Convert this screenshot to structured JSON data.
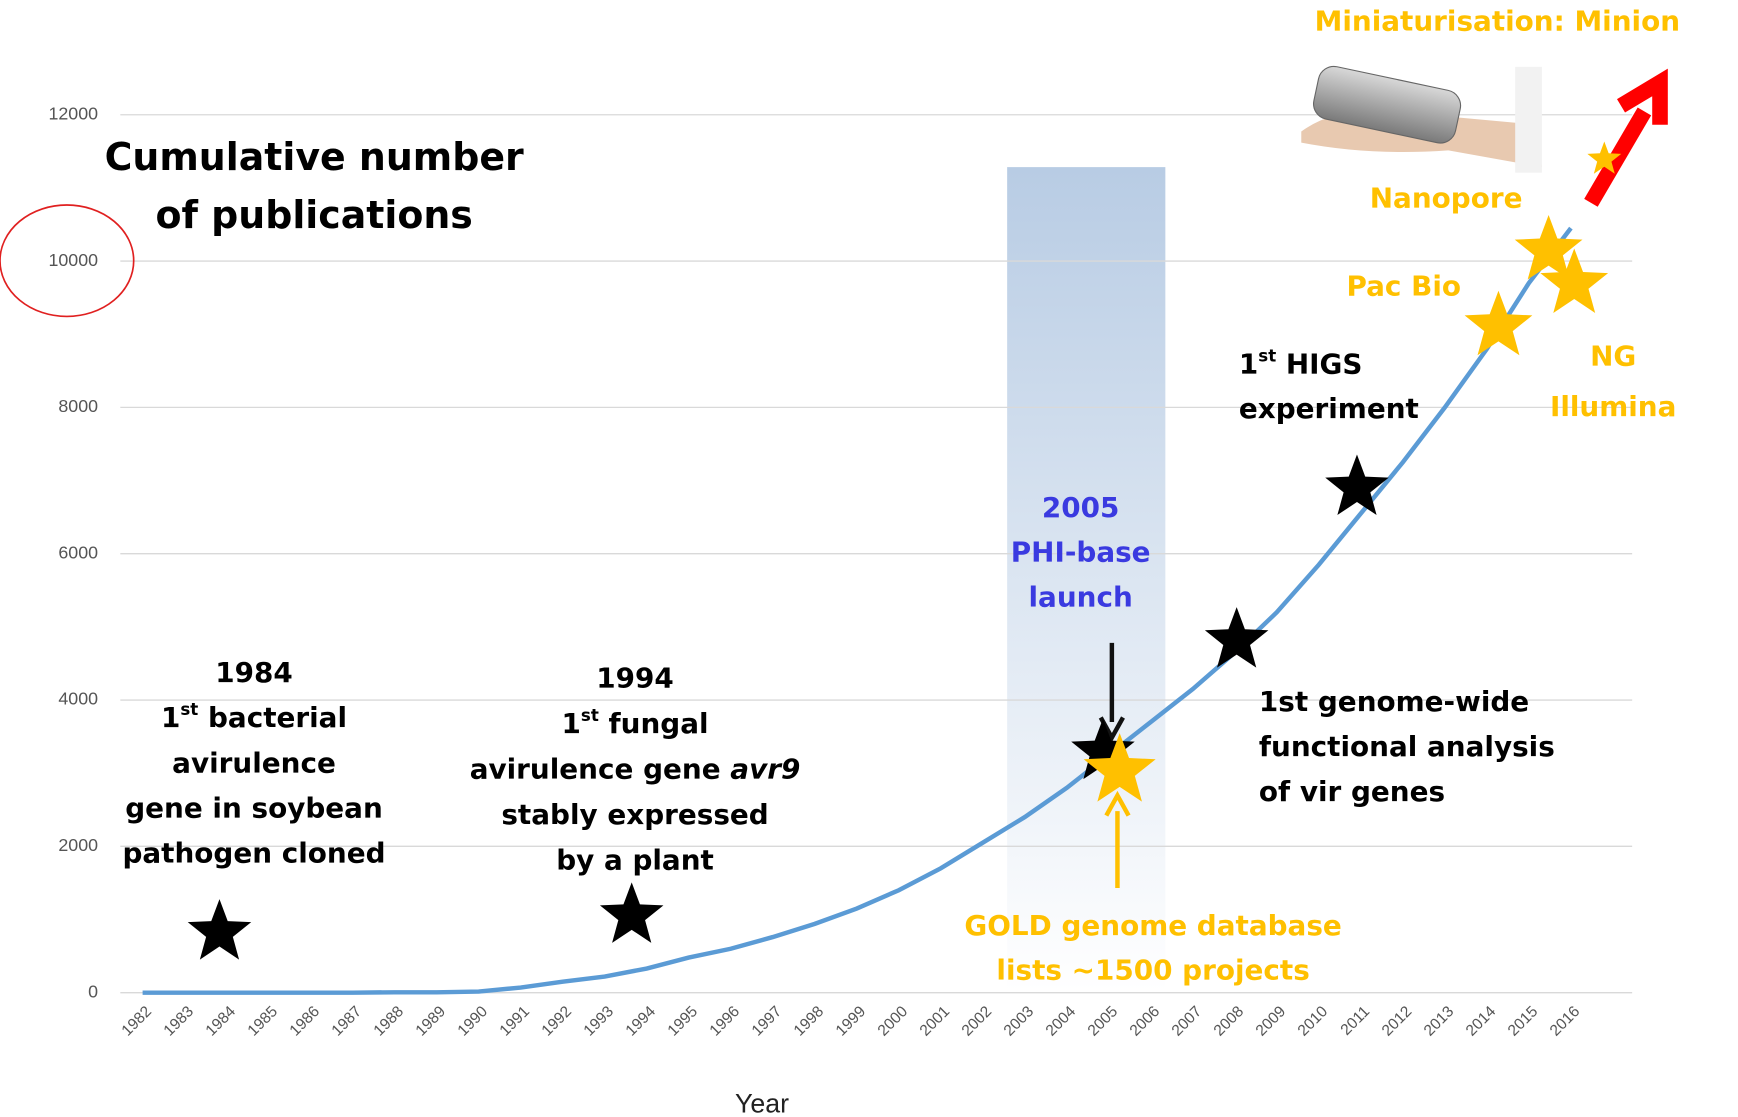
{
  "chart_data": {
    "type": "line",
    "title": [
      "Cumulative number",
      "of publications"
    ],
    "x_label": "Year",
    "categories": [
      "1982",
      "1983",
      "1984",
      "1985",
      "1986",
      "1987",
      "1988",
      "1989",
      "1990",
      "1991",
      "1992",
      "1993",
      "1994",
      "1995",
      "1996",
      "1997",
      "1998",
      "1999",
      "2000",
      "2001",
      "2002",
      "2003",
      "2004",
      "2005",
      "2006",
      "2007",
      "2008",
      "2009",
      "2010",
      "2011",
      "2012",
      "2013",
      "2014",
      "2015",
      "2016"
    ],
    "values": [
      0,
      0,
      0,
      0,
      0,
      0,
      5,
      5,
      15,
      70,
      150,
      220,
      330,
      480,
      600,
      760,
      940,
      1150,
      1400,
      1700,
      2050,
      2400,
      2800,
      3250,
      3700,
      4150,
      4650,
      5200,
      5850,
      6550,
      7250,
      8000,
      8800,
      9700,
      10450
    ],
    "color": "#5b9bd5",
    "ylim": [
      0,
      12000
    ],
    "yticks": [
      0,
      2000,
      4000,
      6000,
      8000,
      10000,
      12000
    ],
    "grid": true,
    "annotations": [
      {
        "color": "#000000",
        "lines": [
          "1984",
          [
            {
              "text": "1"
            },
            {
              "text": "st",
              "sup": true
            },
            {
              "text": " bacterial"
            }
          ],
          "avirulence",
          "gene in soybean",
          "pathogen cloned"
        ]
      },
      {
        "color": "#000000",
        "lines": [
          "1994",
          [
            {
              "text": "1"
            },
            {
              "text": "st",
              "sup": true
            },
            {
              "text": " fungal"
            }
          ],
          [
            {
              "text": "avirulence gene "
            },
            {
              "text": "avr9",
              "italic": true
            }
          ],
          "stably expressed",
          "by a plant"
        ]
      },
      {
        "color": "#3a3ae0",
        "lines": [
          "2005",
          "PHI-base",
          "launch"
        ]
      },
      {
        "color": "#ffc000",
        "lines": [
          "GOLD genome database",
          "lists ~1500 projects"
        ]
      },
      {
        "color": "#000000",
        "lines": [
          "1st genome-wide",
          "functional analysis",
          "of vir genes"
        ]
      },
      {
        "color": "#000000",
        "lines": [
          [
            {
              "text": "1"
            },
            {
              "text": "st",
              "sup": true
            },
            {
              "text": " HIGS"
            }
          ],
          "experiment"
        ]
      },
      {
        "color": "#ffc000",
        "lines": [
          "Pac Bio"
        ]
      },
      {
        "color": "#ffc000",
        "lines": [
          "Nanopore"
        ]
      },
      {
        "color": "#ffc000",
        "lines": [
          "NG",
          "Illumina"
        ]
      },
      {
        "color": "#ffc000",
        "lines": [
          "Miniaturisation: Minion"
        ]
      }
    ]
  }
}
